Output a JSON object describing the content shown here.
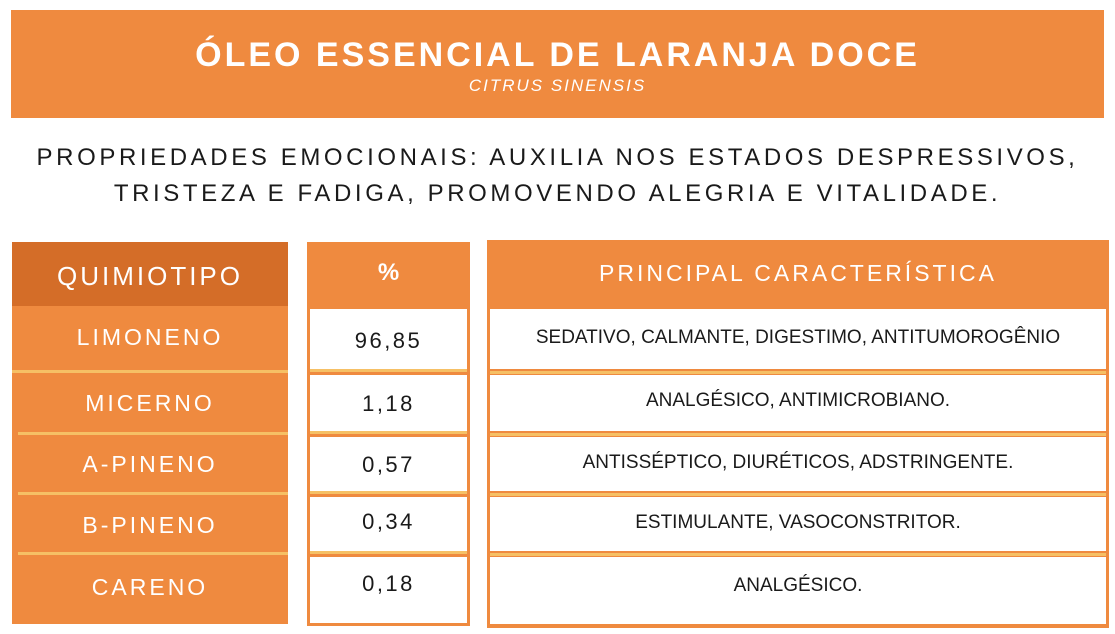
{
  "header": {
    "title": "ÓLEO ESSENCIAL DE LARANJA DOCE",
    "subtitle": "CITRUS SINENSIS"
  },
  "description": {
    "line1": "PROPRIEDADES EMOCIONAIS: AUXILIA NOS ESTADOS DESPRESSIVOS,",
    "line2": "TRISTEZA E FADIGA, PROMOVENDO ALEGRIA E VITALIDADE."
  },
  "table": {
    "headers": {
      "chemotype": "QUIMIOTIPO",
      "percent": "%",
      "characteristic": "PRINCIPAL CARACTERÍSTICA"
    },
    "rows": [
      {
        "chemotype": "LIMONENO",
        "percent": "96,85",
        "characteristic": "SEDATIVO, CALMANTE, DIGESTIMO, ANTITUMOROGÊNIO"
      },
      {
        "chemotype": "MICERNO",
        "percent": "1,18",
        "characteristic": "ANALGÉSICO, ANTIMICROBIANO."
      },
      {
        "chemotype": "A-PINENO",
        "percent": "0,57",
        "characteristic": "ANTISSÉPTICO, DIURÉTICOS, ADSTRINGENTE."
      },
      {
        "chemotype": "B-PINENO",
        "percent": "0,34",
        "characteristic": "ESTIMULANTE, VASOCONSTRITOR."
      },
      {
        "chemotype": "CARENO",
        "percent": "0,18",
        "characteristic": "ANALGÉSICO."
      }
    ]
  },
  "colors": {
    "orange": "#ef8a3f",
    "dark_orange": "#d46d28",
    "separator": "#f6c065"
  }
}
